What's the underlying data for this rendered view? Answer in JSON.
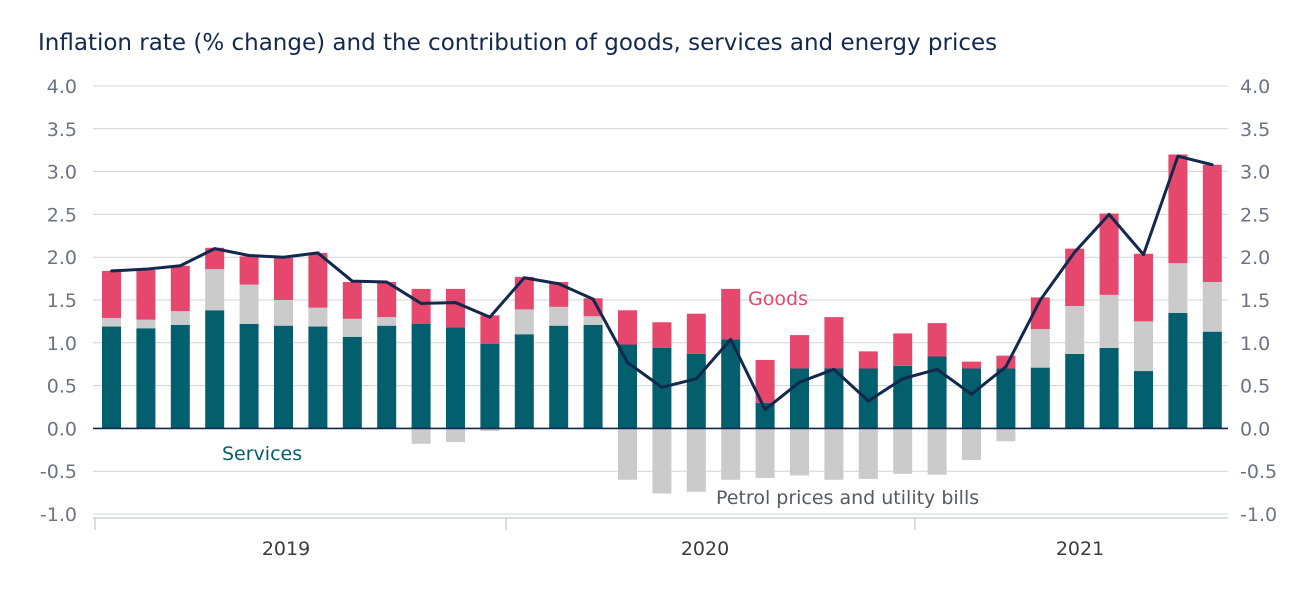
{
  "chart_data": {
    "type": "bar",
    "title": "Inflation rate (% change) and the contribution of goods, services and energy prices",
    "ylim": [
      -1.0,
      4.0
    ],
    "yticks": [
      -1.0,
      -0.5,
      0.0,
      0.5,
      1.0,
      1.5,
      2.0,
      2.5,
      3.0,
      3.5,
      4.0
    ],
    "ytick_labels": [
      "-1.0",
      "-0.5",
      "0.0",
      "0.5",
      "1.0",
      "1.5",
      "2.0",
      "2.5",
      "3.0",
      "3.5",
      "4.0"
    ],
    "grid": true,
    "stacked": true,
    "x_year_labels": [
      "2019",
      "2020",
      "2021"
    ],
    "series": [
      {
        "key": "services",
        "values": [
          1.19,
          1.17,
          1.21,
          1.38,
          1.22,
          1.2,
          1.19,
          1.07,
          1.2,
          1.22,
          1.18,
          0.99,
          1.1,
          1.2,
          1.21,
          0.98,
          0.94,
          0.87,
          1.04,
          0.3,
          0.7,
          0.7,
          0.7,
          0.73,
          0.84,
          0.7,
          0.7,
          0.71,
          0.87,
          0.94,
          0.67,
          1.35,
          1.13
        ]
      },
      {
        "key": "energy",
        "name": "Petrol prices and utility bills",
        "values": [
          0.1,
          0.1,
          0.16,
          0.48,
          0.46,
          0.3,
          0.22,
          0.21,
          0.1,
          -0.18,
          -0.16,
          -0.03,
          0.29,
          0.22,
          0.1,
          -0.6,
          -0.76,
          -0.74,
          -0.6,
          -0.58,
          -0.55,
          -0.6,
          -0.59,
          -0.53,
          -0.54,
          -0.37,
          -0.15,
          0.45,
          0.56,
          0.62,
          0.58,
          0.58,
          0.58
        ]
      },
      {
        "key": "goods",
        "name": "Goods",
        "values": [
          0.55,
          0.58,
          0.53,
          0.25,
          0.33,
          0.49,
          0.64,
          0.43,
          0.41,
          0.41,
          0.45,
          0.33,
          0.38,
          0.29,
          0.21,
          0.4,
          0.3,
          0.47,
          0.59,
          0.5,
          0.39,
          0.6,
          0.2,
          0.38,
          0.39,
          0.08,
          0.15,
          0.37,
          0.67,
          0.95,
          0.79,
          1.27,
          1.37
        ]
      }
    ],
    "line": {
      "key": "inflation",
      "values": [
        1.84,
        1.86,
        1.9,
        2.1,
        2.02,
        2.0,
        2.05,
        1.72,
        1.71,
        1.46,
        1.47,
        1.3,
        1.76,
        1.69,
        1.51,
        0.77,
        0.48,
        0.58,
        1.04,
        0.22,
        0.54,
        0.69,
        0.32,
        0.58,
        0.69,
        0.4,
        0.72,
        1.5,
        2.06,
        2.5,
        2.03,
        3.18,
        3.08
      ]
    },
    "colors": {
      "services": "#035f6e",
      "energy": "#cbcbcb",
      "goods": "#e6476d",
      "line": "#12284c",
      "grid": "#d0d4d8",
      "zero_line": "#12284c"
    },
    "annotations": {
      "services": "Services",
      "goods": "Goods",
      "energy": "Petrol prices and utility bills"
    }
  }
}
